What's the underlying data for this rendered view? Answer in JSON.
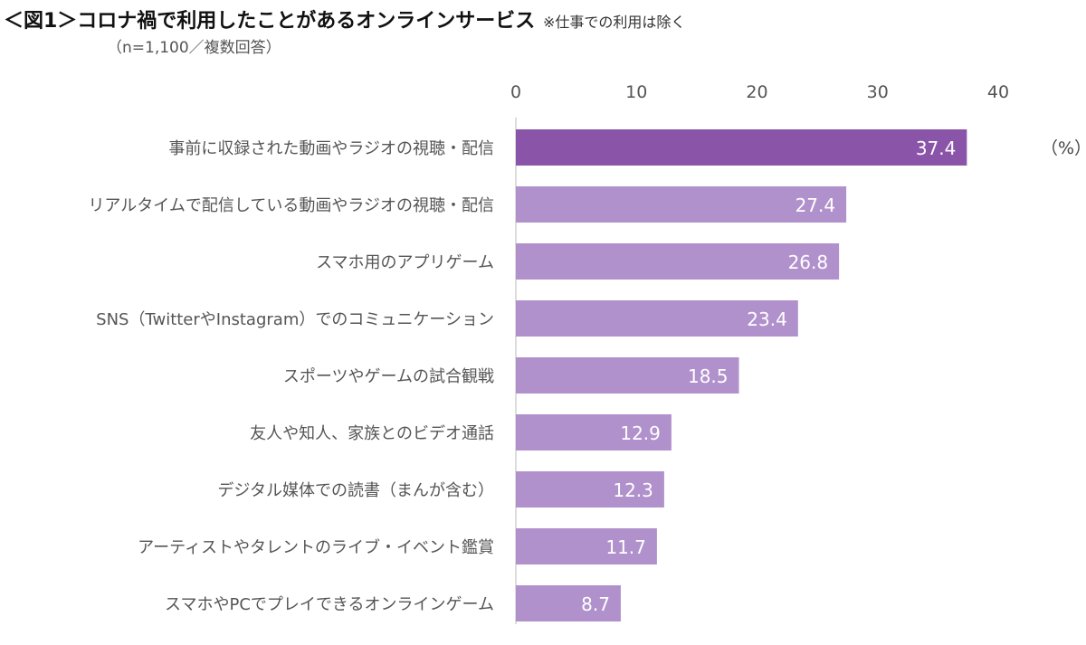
{
  "chart_data": {
    "type": "bar",
    "orientation": "horizontal",
    "title": "＜図1＞コロナ禍で利用したことがあるオンラインサービス",
    "note": "※仕事での利用は除く",
    "subtitle": "（n=1,100／複数回答）",
    "unit": "（%）",
    "xlim": [
      0,
      40
    ],
    "xticks": [
      "0",
      "10",
      "20",
      "30",
      "40"
    ],
    "tick_values": [
      0,
      10,
      20,
      30,
      40
    ],
    "grid": false,
    "categories": [
      "事前に収録された動画やラジオの視聴・配信",
      "リアルタイムで配信している動画やラジオの視聴・配信",
      "スマホ用のアプリゲーム",
      "SNS（TwitterやInstagram）でのコミュニケーション",
      "スポーツやゲームの試合観戦",
      "友人や知人、家族とのビデオ通話",
      "デジタル媒体での読書（まんが含む）",
      "アーティストやタレントのライブ・イベント鑑賞",
      "スマホやPCでプレイできるオンラインゲーム"
    ],
    "values": [
      37.4,
      27.4,
      26.8,
      23.4,
      18.5,
      12.9,
      12.3,
      11.7,
      8.7
    ],
    "value_labels": [
      "37.4",
      "27.4",
      "26.8",
      "23.4",
      "18.5",
      "12.9",
      "12.3",
      "11.7",
      "8.7"
    ],
    "colors": {
      "highlight": "#8a55a8",
      "bar": "#b191cc",
      "axis": "#d0d0d0"
    }
  }
}
